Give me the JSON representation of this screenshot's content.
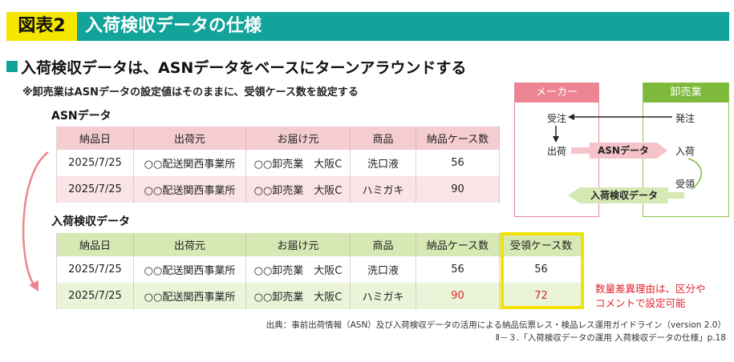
{
  "banner": {
    "figure_no": "図表2",
    "title": "入荷検収データの仕様"
  },
  "heading": "入荷検収データは、ASNデータをベースにターンアラウンドする",
  "subnote": "※卸売業はASNデータの設定値はそのままに、受領ケース数を設定する",
  "asn": {
    "label": "ASNデータ",
    "headers": [
      "納品日",
      "出荷元",
      "お届け元",
      "商品",
      "納品ケース数"
    ],
    "rows": [
      [
        "2025/7/25",
        "○○配送関西事業所",
        "○○卸売業　大阪C",
        "洗口液",
        "56"
      ],
      [
        "2025/7/25",
        "○○配送関西事業所",
        "○○卸売業　大阪C",
        "ハミガキ",
        "90"
      ]
    ]
  },
  "receipt": {
    "label": "入荷検収データ",
    "headers": [
      "納品日",
      "出荷元",
      "お届け元",
      "商品",
      "納品ケース数",
      "受領ケース数"
    ],
    "rows": [
      [
        "2025/7/25",
        "○○配送関西事業所",
        "○○卸売業　大阪C",
        "洗口液",
        "56",
        "56"
      ],
      [
        "2025/7/25",
        "○○配送関西事業所",
        "○○卸売業　大阪C",
        "ハミガキ",
        "90",
        "72"
      ]
    ]
  },
  "diff_note": [
    "数量差異理由は、区分や",
    "コメントで設定可能"
  ],
  "diagram": {
    "maker": "メーカー",
    "wholesaler": "卸売業",
    "order_received": "受注",
    "order_placed": "発注",
    "shipment": "出荷",
    "asn_flow": "ASNデータ",
    "receiving": "入荷",
    "acceptance": "受領",
    "receipt_flow": "入荷検収データ"
  },
  "colors": {
    "teal": "#12a39a",
    "yellow": "#f5e600",
    "pink": "#f5cdd1",
    "green": "#d6e8b4",
    "red": "#e3232c"
  },
  "source": [
    "出典：事前出荷情報（ASN）及び入荷検収データの活用による納品伝票レス・検品レス運用ガイドライン（version 2.0）",
    "Ⅱ－３.「入荷検収データの運用 入荷検収データの仕様」p.18"
  ]
}
